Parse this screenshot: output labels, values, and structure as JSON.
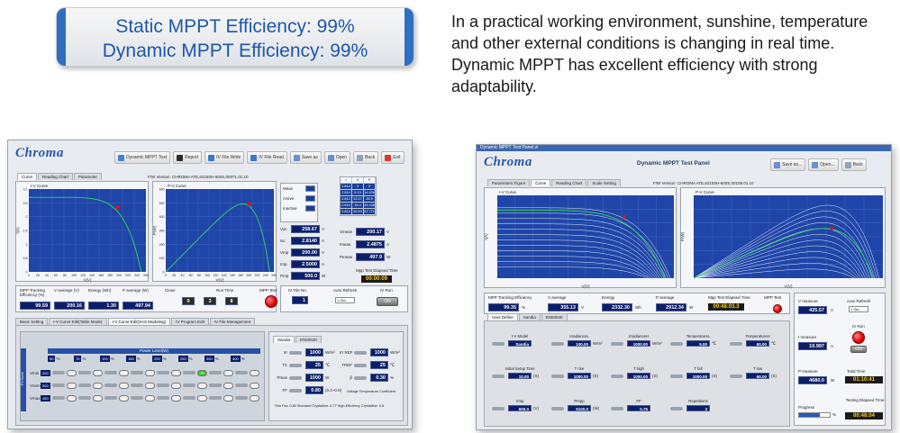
{
  "banner": {
    "line1": "Static MPPT Efficiency: 99%",
    "line2": "Dynamic MPPT Efficiency: 99%"
  },
  "description": "In a practical working environment, sunshine, temperature and other external conditions is changing in real time. Dynamic MPPT has excellent efficiency with strong adaptability.",
  "colors": {
    "accent_blue": "#1e56a8",
    "plot_bg": "#1f45a8",
    "curve_green": "#2ecf5a",
    "mpp_red": "#e0101a"
  },
  "panel1": {
    "logo": "Chroma",
    "toolbar": [
      {
        "icon": "dynamic-mppt-icon",
        "label": "Dynamic MPPT Test"
      },
      {
        "icon": "report-icon",
        "label": "Report"
      },
      {
        "icon": "iv-file-write-icon",
        "label": "IV File Write"
      },
      {
        "icon": "iv-file-read-icon",
        "label": "IV File Read"
      },
      {
        "icon": "save-icon",
        "label": "Save as"
      },
      {
        "icon": "open-icon",
        "label": "Open"
      },
      {
        "icon": "back-icon",
        "label": "Back"
      },
      {
        "icon": "exit-icon",
        "label": "Exit"
      }
    ],
    "tabs": [
      "Curve",
      "Reading Chart",
      "Parameter"
    ],
    "fw_version": "F/W Version: CHROMA ATE,62150H-600S,00071.01.10",
    "iv_curve": {
      "title": "I-V Curve",
      "xlabel": "V(V)",
      "ylabel": "I(A)",
      "xticks": [
        "0",
        "20",
        "40",
        "60",
        "80",
        "100",
        "120",
        "140",
        "160",
        "180",
        "200",
        "220",
        "240",
        "260"
      ],
      "yticks": [
        "3.1",
        "2.5",
        "2",
        "1.5",
        "1",
        "0.5",
        "0"
      ]
    },
    "pv_curve": {
      "title": "P-V Curve",
      "xlabel": "V(V)",
      "ylabel": "P(W)",
      "xticks": [
        "0",
        "20",
        "40",
        "60",
        "80",
        "100",
        "120",
        "140",
        "160",
        "180",
        "200",
        "220",
        "240",
        "260"
      ],
      "yticks": [
        "600",
        "500",
        "400",
        "300",
        "200",
        "100",
        "0"
      ]
    },
    "legend": {
      "meas": "Meas",
      "active": "Active",
      "inactive": "Inactive"
    },
    "readings": [
      {
        "label": "Voc",
        "value": "258.67",
        "unit": "V"
      },
      {
        "label": "Isc",
        "value": "2.8140",
        "unit": "A"
      },
      {
        "label": "Vmp",
        "value": "200.00",
        "unit": "V"
      },
      {
        "label": "Imp",
        "value": "2.5000",
        "unit": "A"
      },
      {
        "label": "Pmp",
        "value": "500.0",
        "unit": "W"
      }
    ],
    "measure": [
      {
        "label": "Vmeas",
        "value": "200.17",
        "unit": "V"
      },
      {
        "label": "Imeas",
        "value": "2.4875",
        "unit": "A"
      },
      {
        "label": "Pmeas",
        "value": "497.9",
        "unit": "W"
      }
    ],
    "mpp_elapsed_label": "Mpp Test Elapsed Time",
    "mpp_elapsed": "00:00:09",
    "table_header": [
      "I",
      "V",
      "P"
    ],
    "table_rows": [
      [
        "2.814",
        "0",
        "0"
      ],
      [
        "2.814",
        "5.13",
        "14.436"
      ],
      [
        "2.814",
        "10.27",
        "28.9"
      ],
      [
        "2.814",
        "15.4",
        "43.336"
      ],
      [
        "2.814",
        "20.53",
        "57.771"
      ]
    ],
    "tracking": {
      "labels": [
        "MPP Tracking Efficiency (%)",
        "V average (V)",
        "Energy (Wh)",
        "P average (W)"
      ],
      "values": [
        "99.59",
        "200.16",
        "1.30",
        "497.94"
      ]
    },
    "run_time_label": "Run Time",
    "close_label": "Close",
    "run_time": [
      "0",
      "3",
      "8"
    ],
    "mpp_test_label": "MPP Test",
    "iv_file_no_label": "IV File No.",
    "iv_file_no": "1",
    "auto_refresh_label": "Auto Refresh",
    "auto_refresh": "1 Sec",
    "iv_run_label": "IV Run",
    "iv_run_button": "ON",
    "bottom_tabs": [
      "Basic Setting",
      "I-V Curve Edit(Table Mode)",
      "I-V Curve Edit(SAS Modeling)",
      "IV Program Edit",
      "IV File Management"
    ],
    "power_level_label": "Power Level(W)",
    "rows": [
      {
        "label": "Vmin",
        "value": "200"
      },
      {
        "label": "Vnom",
        "value": "300"
      },
      {
        "label": "Vmax",
        "value": "450"
      }
    ],
    "col_values": [
      "50",
      "75",
      "100",
      "150",
      "200",
      "250",
      "300",
      "400"
    ],
    "side_label": "PV Curve",
    "sub_tabs": [
      "Sandia",
      "EN50530"
    ],
    "params": [
      {
        "label": "Irr",
        "value": "1000",
        "unit": "W/m²"
      },
      {
        "label": "TC",
        "value": "25",
        "unit": "℃"
      },
      {
        "label": "Pmax",
        "value": "1000",
        "unit": "W"
      },
      {
        "label": "FF",
        "value": "0.80",
        "unit": "(0.4~0.9)"
      }
    ],
    "params_right": [
      {
        "label": "Irr REF",
        "value": "1000",
        "unit": "W/m²"
      },
      {
        "label": "TREF",
        "value": "25",
        "unit": "℃"
      },
      {
        "label": "β",
        "value": "0.30",
        "unit": "%"
      }
    ],
    "voltage_note": "Voltage Temperature Coefficient",
    "notes": "Film Fss: 0.80  Standard Crystalline: 0.77  High-Efficiency Crystalline: 0.8"
  },
  "panel2": {
    "window_title": "Dynamic MPPT Test Panel.vi",
    "logo": "Chroma",
    "title": "Dynamic MPPT Test Panel",
    "toolbar": [
      {
        "icon": "save-icon",
        "label": "Save as..."
      },
      {
        "icon": "open-icon",
        "label": "Open..."
      },
      {
        "icon": "back-icon",
        "label": "Back"
      }
    ],
    "tabs": [
      "Parameters Figure",
      "Curve",
      "Reading Chart",
      "Scale Setting"
    ],
    "fw_version": "F/W Version: CHROMA ATE,62150H-600S,00108.01.10",
    "iv_curve": {
      "title": "I-V Curve",
      "xlabel": "V(V)",
      "ylabel": "I(A)"
    },
    "pv_curve": {
      "title": "P-V Curve",
      "xlabel": "V(V)",
      "ylabel": "P(W)"
    },
    "tracking_labels": [
      "MPP Tracking Efficiency",
      "V average",
      "Energy",
      "P average",
      "Mpp Test Elapsed Time",
      "MPP Test"
    ],
    "tracking_values": [
      "99.35",
      "355.13",
      "2332.30",
      "2912.34",
      "00:48:03.3"
    ],
    "tracking_units": [
      "%",
      "V",
      "Wh",
      "W"
    ],
    "sub_tabs": [
      "User Define",
      "Sandia",
      "EN50530"
    ],
    "controls_row1": [
      {
        "label": "I-V Model",
        "value": "Sandia"
      },
      {
        "label": "IrradianceL",
        "value": "100.00",
        "unit": "W/m²"
      },
      {
        "label": "IrradianceH",
        "value": "1000.00",
        "unit": "W/m²"
      },
      {
        "label": "TemperatureL",
        "value": "5.00",
        "unit": "℃"
      },
      {
        "label": "TemperatureH",
        "value": "60.00",
        "unit": "℃"
      }
    ],
    "controls_row2": [
      {
        "label": "Initial Setup Time",
        "value": "10.00",
        "unit": "(S)"
      },
      {
        "label": "T rise",
        "value": "1000.00",
        "unit": "(S)"
      },
      {
        "label": "T high",
        "value": "1000.00",
        "unit": "(S)"
      },
      {
        "label": "T fall",
        "value": "1000.00",
        "unit": "(S)"
      },
      {
        "label": "T low",
        "value": "60.00",
        "unit": "(S)"
      }
    ],
    "controls_row3": [
      {
        "label": "Vmp",
        "value": "600.0",
        "unit": "(V)"
      },
      {
        "label": "Pmpp",
        "value": "5100.0",
        "unit": "(W)"
      },
      {
        "label": "FF",
        "value": "0.75",
        "unit": ""
      },
      {
        "label": "Repetitions",
        "value": "3",
        "unit": ""
      }
    ],
    "right": {
      "vmeasure_label": "V measure",
      "vmeasure": "425.57",
      "vunit": "V",
      "auto_refresh_label": "Auto Refresh",
      "auto_refresh": "1 Sec",
      "imeasure_label": "I measure",
      "imeasure": "10.997",
      "iunit": "A",
      "iv_run_label": "IV Run",
      "iv_run_button": "ON",
      "pmeasure_label": "P measure",
      "pmeasure": "4680.0",
      "punit": "W",
      "total_time_label": "Total Time",
      "total_time": "01:10:41",
      "progress_label": "Progress",
      "progress_pct": "%",
      "elapsed_label": "Testing Elapsed Time",
      "elapsed": "00:48:04",
      "progress": 0.68
    }
  }
}
